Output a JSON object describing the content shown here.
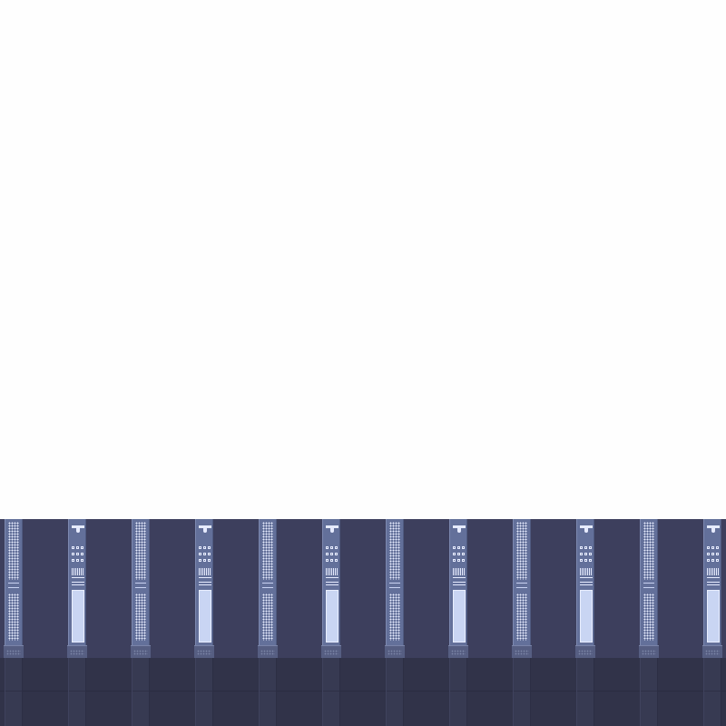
{
  "scene": {
    "colors": {
      "sky": "#fefefe",
      "wall": "#3d3f5d",
      "floor": "#313349",
      "pillar": "#63709a",
      "pillar_highlight": "#e6ebff",
      "locker_window": "#c9d5f3"
    },
    "pillars": [
      {
        "kind": "vent"
      },
      {
        "kind": "locker"
      },
      {
        "kind": "vent"
      },
      {
        "kind": "locker"
      },
      {
        "kind": "vent"
      },
      {
        "kind": "locker"
      },
      {
        "kind": "vent"
      },
      {
        "kind": "locker"
      },
      {
        "kind": "vent"
      },
      {
        "kind": "locker"
      },
      {
        "kind": "vent"
      },
      {
        "kind": "locker"
      }
    ]
  }
}
